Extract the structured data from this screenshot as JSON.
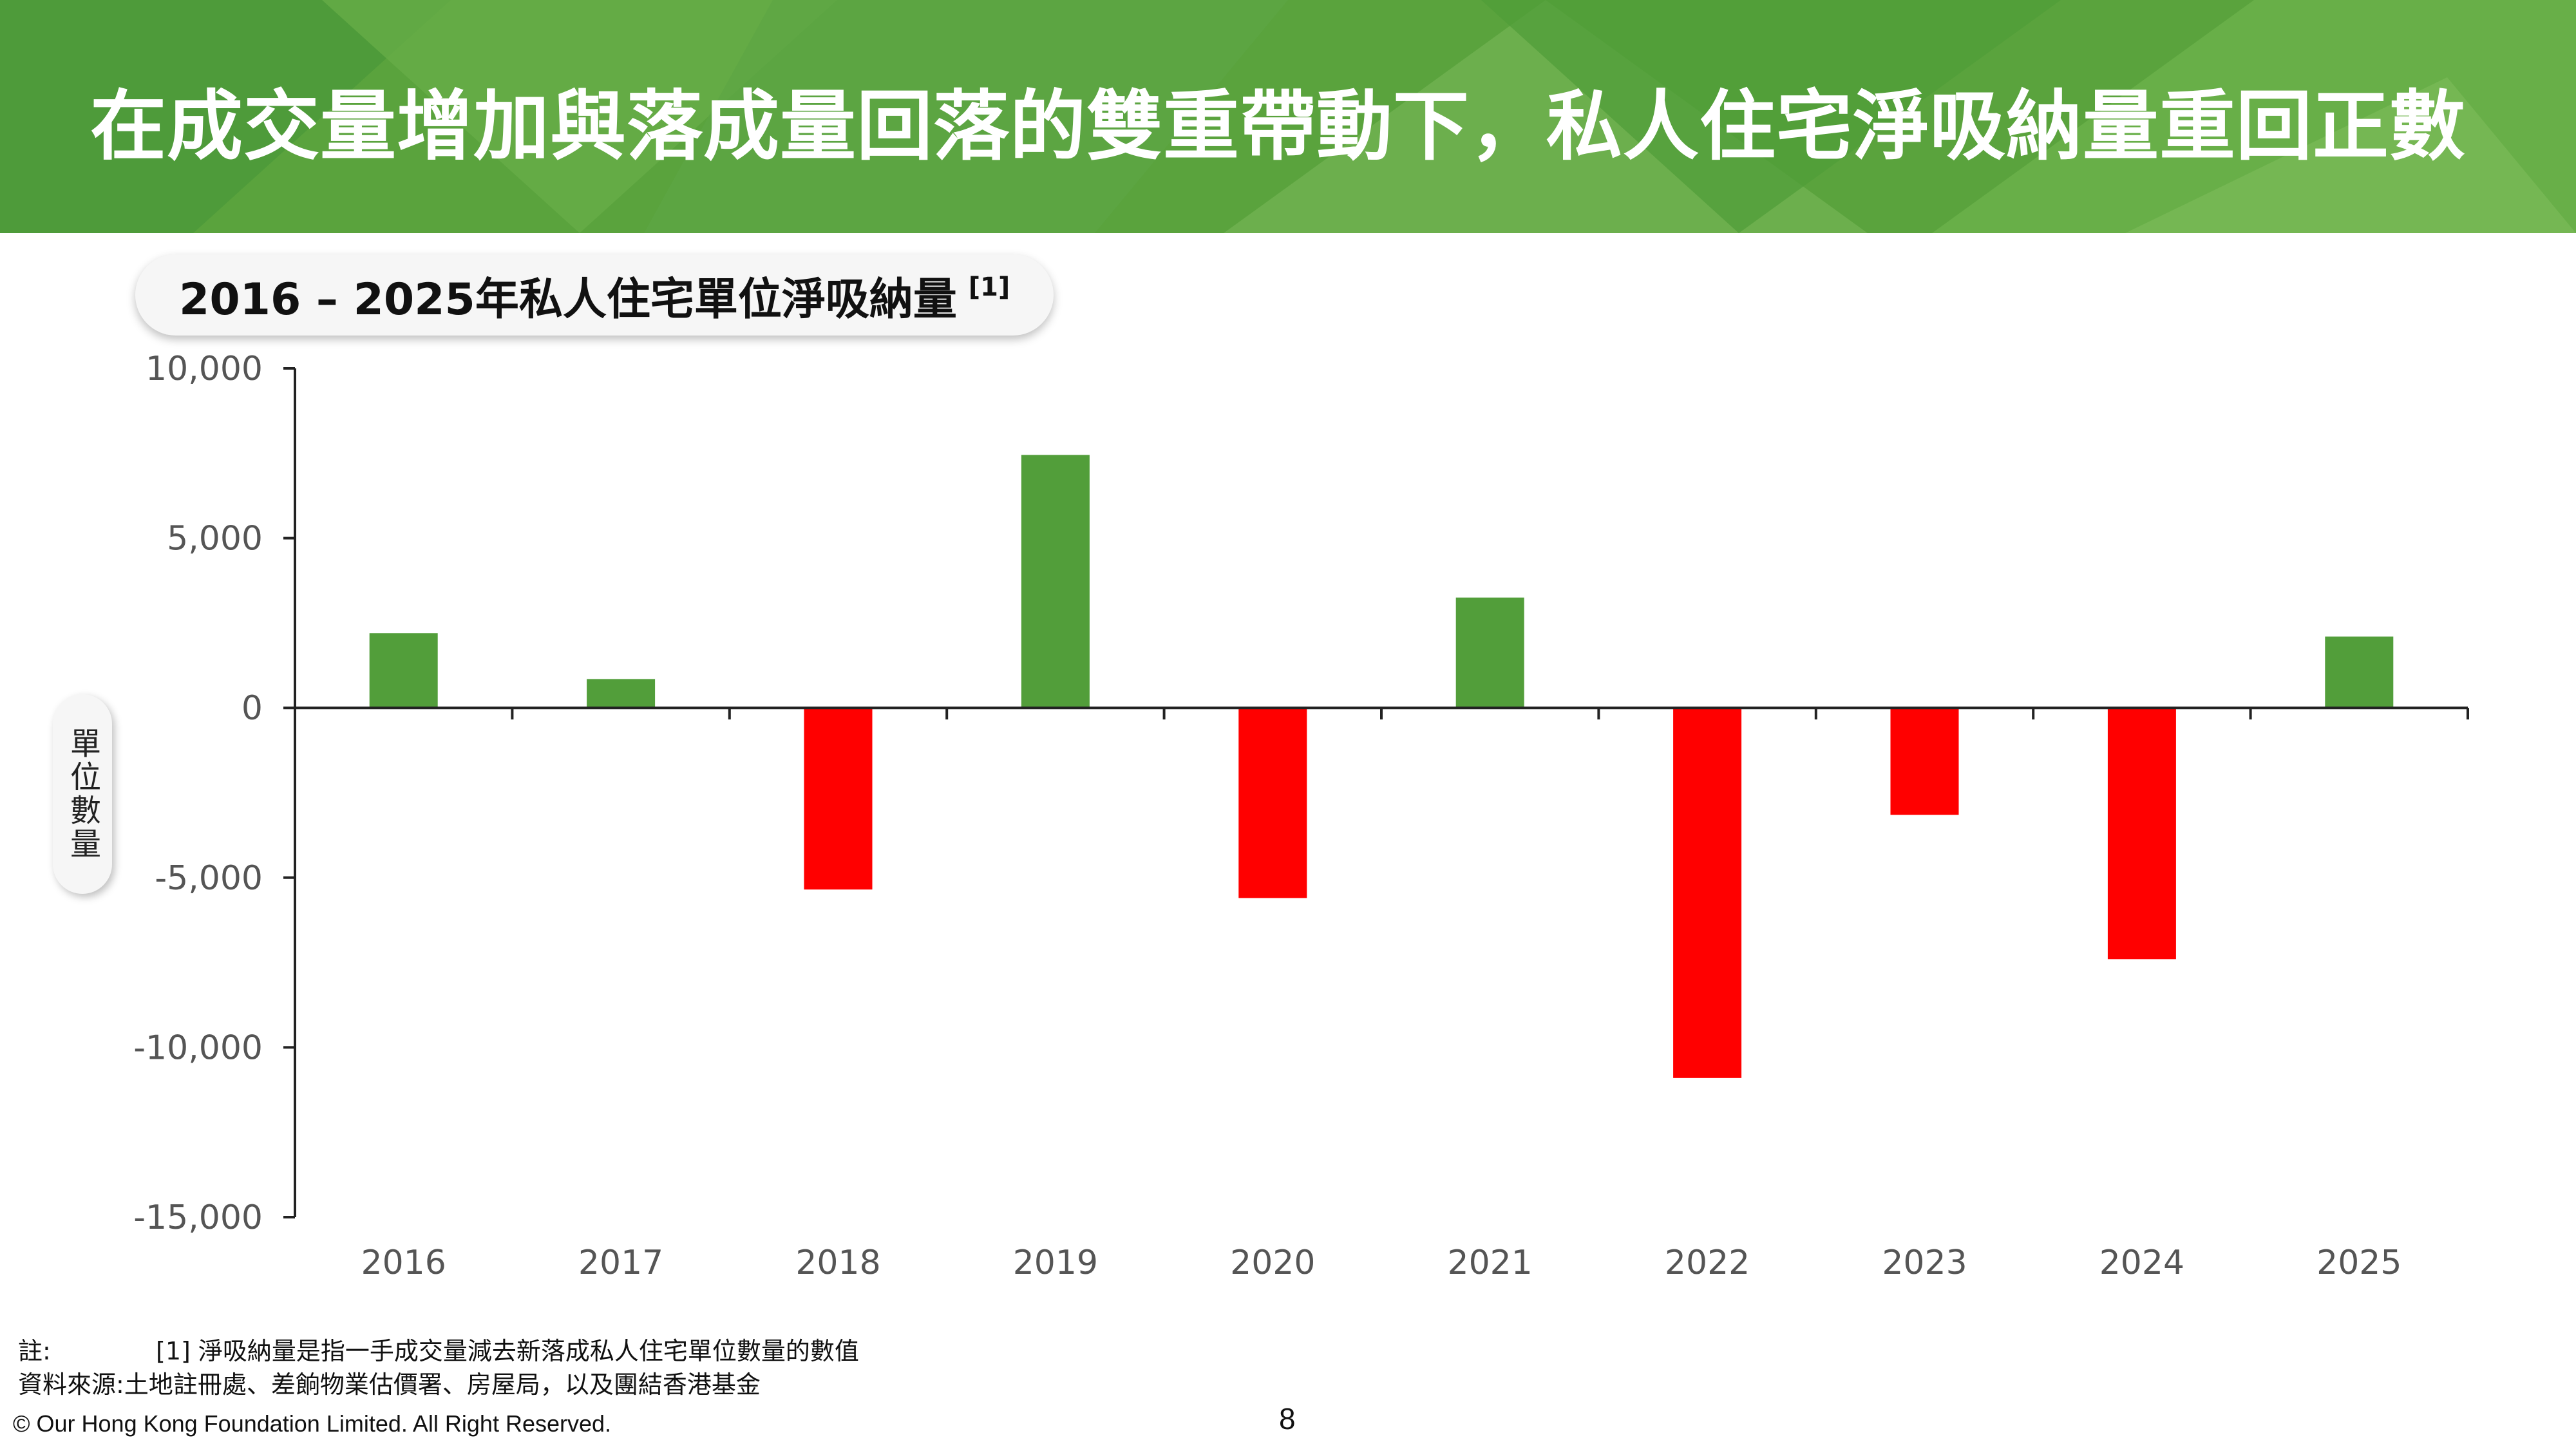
{
  "header": {
    "title": "在成交量增加與落成量回落的雙重帶動下，私人住宅淨吸納量重回正數"
  },
  "colors": {
    "banner": "#5aa33d",
    "positive": "#529e3a",
    "negative": "#ff0000"
  },
  "chart_data": {
    "type": "bar",
    "title": "2016 – 2025年私人住宅單位淨吸納量",
    "title_note": "[1]",
    "xlabel": "",
    "ylabel": "單位數量",
    "categories": [
      "2016",
      "2017",
      "2018",
      "2019",
      "2020",
      "2021",
      "2022",
      "2023",
      "2024",
      "2025"
    ],
    "values": [
      2200,
      850,
      -5350,
      7450,
      -5600,
      3250,
      -10900,
      -3150,
      -7400,
      2100
    ],
    "ylim": [
      -15000,
      10000
    ],
    "yticks": [
      10000,
      5000,
      0,
      -5000,
      -10000,
      -15000
    ],
    "ytick_labels": [
      "10,000",
      "5,000",
      "0",
      "-5,000",
      "-10,000",
      "-15,000"
    ],
    "grid": false,
    "legend": "none"
  },
  "notes": {
    "note_label": "註:",
    "note_text": "[1] 淨吸納量是指一手成交量減去新落成私人住宅單位數量的數值",
    "source_label": "資料來源:",
    "source_text": "土地註冊處、差餉物業估價署、房屋局，以及團結香港基金"
  },
  "footer": {
    "copyright": "© Our Hong Kong Foundation Limited. All Right Reserved.",
    "page_number": "8"
  }
}
